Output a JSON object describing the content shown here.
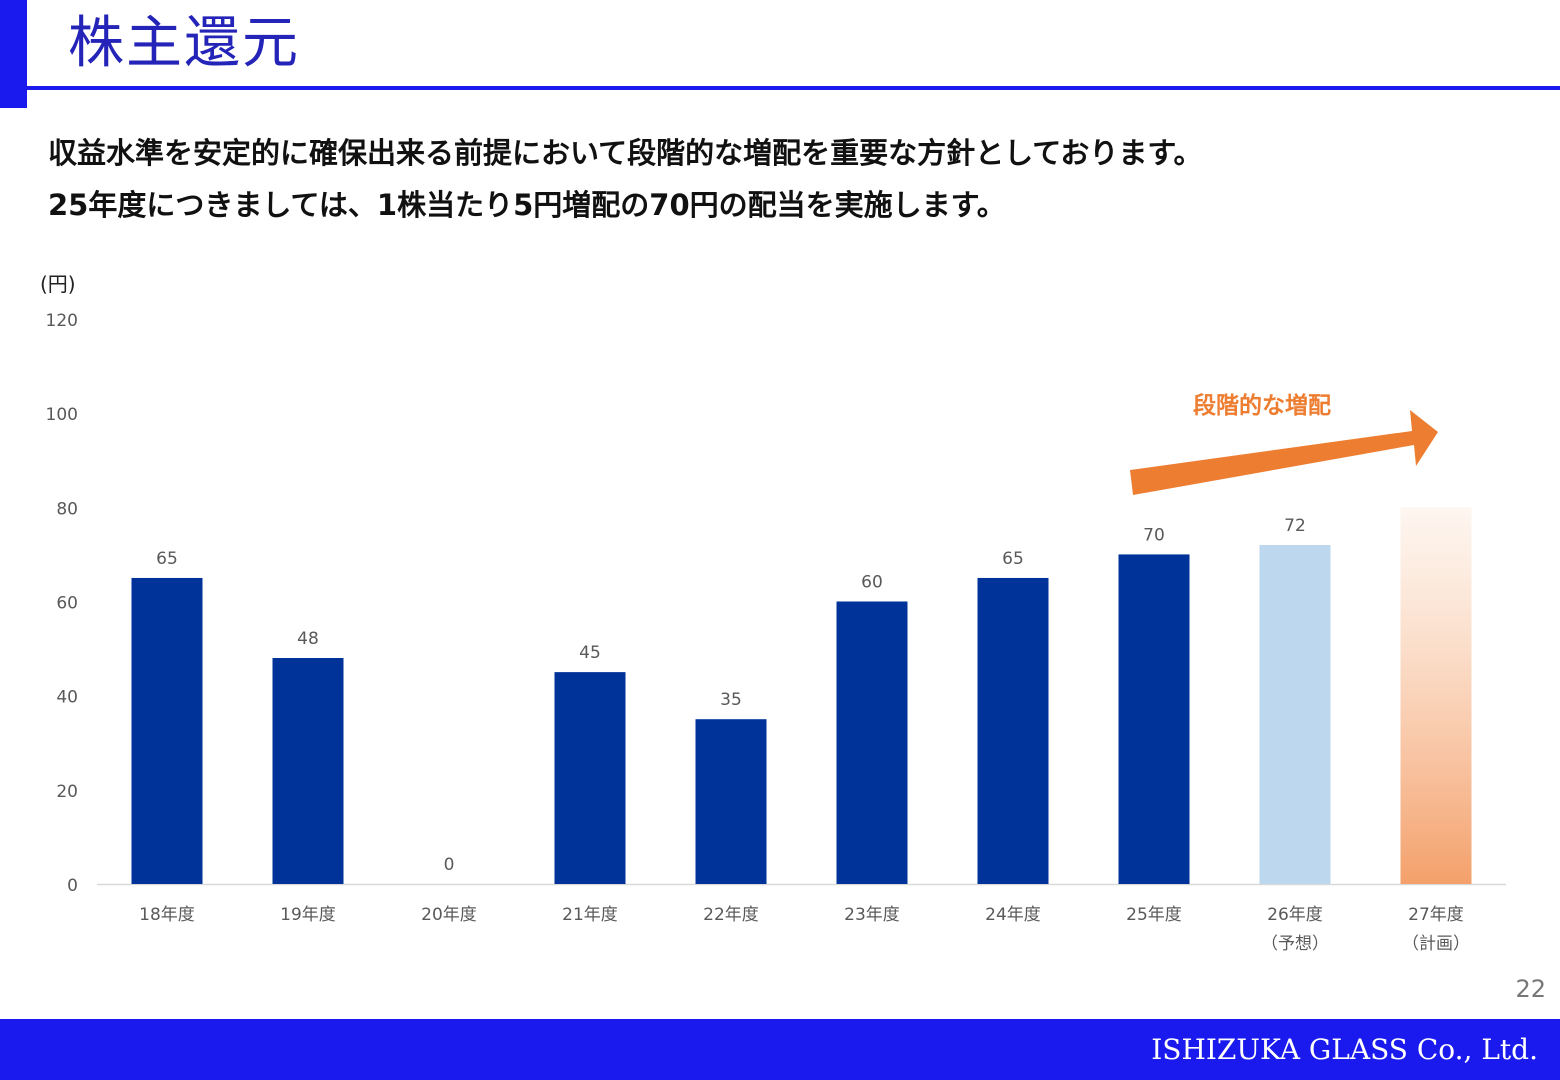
{
  "header": {
    "title": "株主還元"
  },
  "description": {
    "line1": "収益水準を安定的に確保出来る前提において段階的な増配を重要な方針としております。",
    "line2": "25年度につきましては、1株当たり5円増配の70円の配当を実施します。"
  },
  "chart_data": {
    "type": "bar",
    "unit_label": "(円)",
    "categories": [
      "18年度",
      "19年度",
      "20年度",
      "21年度",
      "22年度",
      "23年度",
      "24年度",
      "25年度",
      "26年度",
      "27年度"
    ],
    "category_notes": [
      "",
      "",
      "",
      "",
      "",
      "",
      "",
      "",
      "（予想）",
      "（計画）"
    ],
    "values": [
      65,
      48,
      0,
      45,
      35,
      60,
      65,
      70,
      72,
      80
    ],
    "data_labels": [
      "65",
      "48",
      "0",
      "45",
      "35",
      "60",
      "65",
      "70",
      "72",
      ""
    ],
    "ylim": [
      0,
      120
    ],
    "yticks": [
      0,
      20,
      40,
      60,
      80,
      100,
      120
    ],
    "grid": false,
    "annotation": "段階的な増配",
    "colors": {
      "actual": "#003399",
      "forecast": "#bdd7ee",
      "plan_top": "#fdf0e6",
      "plan_bottom": "#f4a06a",
      "arrow": "#ed7d31",
      "axis_text": "#595959"
    }
  },
  "footer": {
    "page_number": "22",
    "company": "ISHIZUKA GLASS Co., Ltd."
  }
}
